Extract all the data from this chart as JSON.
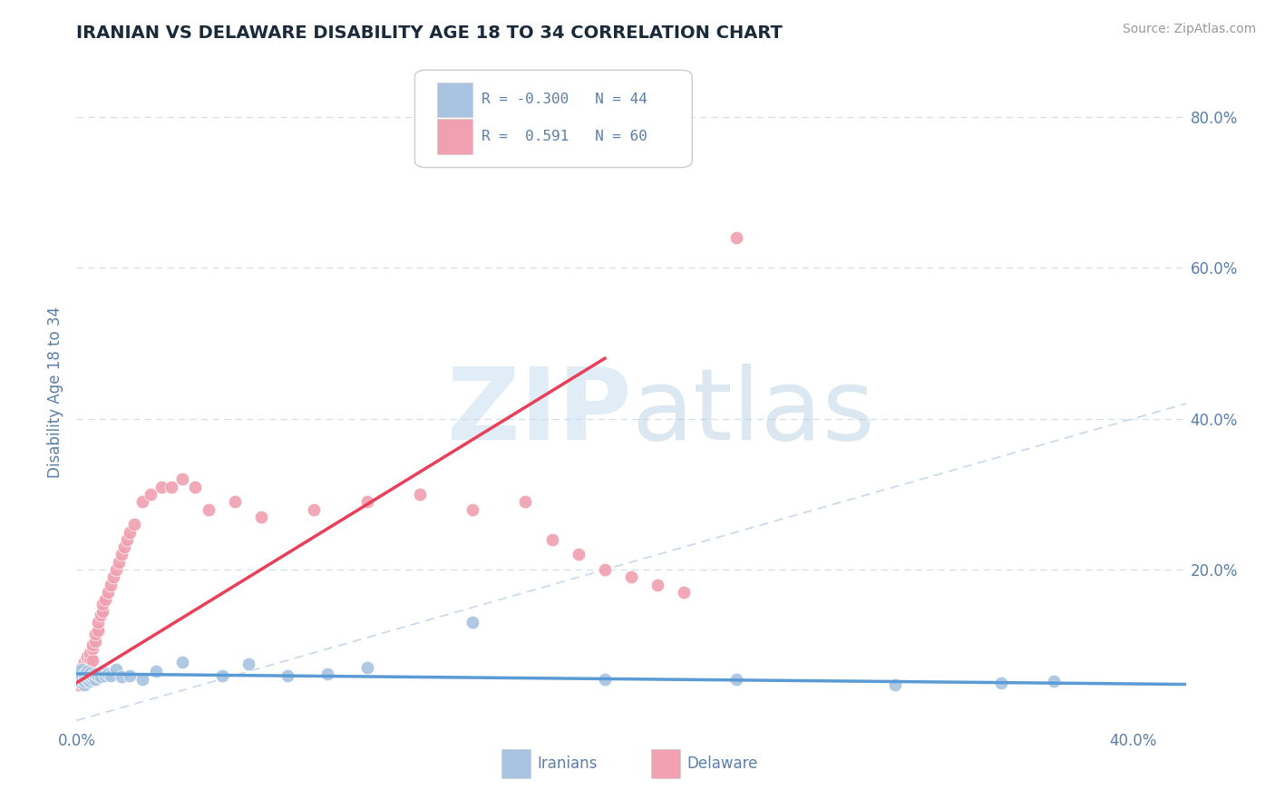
{
  "title": "IRANIAN VS DELAWARE DISABILITY AGE 18 TO 34 CORRELATION CHART",
  "source": "Source: ZipAtlas.com",
  "ylabel": "Disability Age 18 to 34",
  "xlim": [
    0.0,
    0.42
  ],
  "ylim": [
    -0.01,
    0.88
  ],
  "xticks": [
    0.0,
    0.1,
    0.2,
    0.3,
    0.4
  ],
  "yticks": [
    0.0,
    0.2,
    0.4,
    0.6,
    0.8
  ],
  "ytick_labels": [
    "",
    "20.0%",
    "40.0%",
    "60.0%",
    "80.0%"
  ],
  "xtick_labels": [
    "0.0%",
    "",
    "",
    "",
    "40.0%"
  ],
  "color_iranians": "#a8c4e0",
  "color_delaware": "#f0a0b0",
  "color_trendline_iranians": "#5b9bd5",
  "color_trendline_delaware": "#e8405a",
  "color_diagonal": "#c8d8e8",
  "background_color": "#ffffff",
  "grid_color": "#d4dfe8",
  "title_color": "#1a2a3a",
  "axis_label_color": "#5b7fa6",
  "tick_color": "#5b7fa6",
  "source_color": "#999999",
  "watermark_zip_color": "#c8dff0",
  "watermark_atlas_color": "#b0cce0",
  "iranians_x": [
    0.001,
    0.001,
    0.001,
    0.002,
    0.002,
    0.002,
    0.002,
    0.003,
    0.003,
    0.003,
    0.003,
    0.004,
    0.004,
    0.004,
    0.005,
    0.005,
    0.005,
    0.006,
    0.006,
    0.007,
    0.007,
    0.008,
    0.009,
    0.01,
    0.011,
    0.012,
    0.013,
    0.015,
    0.017,
    0.02,
    0.025,
    0.03,
    0.04,
    0.055,
    0.065,
    0.08,
    0.095,
    0.11,
    0.15,
    0.2,
    0.25,
    0.31,
    0.35,
    0.37
  ],
  "iranians_y": [
    0.055,
    0.06,
    0.065,
    0.05,
    0.055,
    0.06,
    0.068,
    0.048,
    0.052,
    0.058,
    0.062,
    0.055,
    0.06,
    0.065,
    0.052,
    0.058,
    0.063,
    0.055,
    0.06,
    0.055,
    0.062,
    0.06,
    0.058,
    0.065,
    0.06,
    0.062,
    0.06,
    0.068,
    0.058,
    0.06,
    0.055,
    0.065,
    0.078,
    0.06,
    0.075,
    0.06,
    0.062,
    0.07,
    0.13,
    0.055,
    0.055,
    0.048,
    0.05,
    0.052
  ],
  "delaware_x": [
    0.001,
    0.001,
    0.001,
    0.002,
    0.002,
    0.002,
    0.002,
    0.003,
    0.003,
    0.003,
    0.003,
    0.004,
    0.004,
    0.004,
    0.004,
    0.005,
    0.005,
    0.005,
    0.006,
    0.006,
    0.006,
    0.007,
    0.007,
    0.008,
    0.008,
    0.009,
    0.01,
    0.01,
    0.011,
    0.012,
    0.013,
    0.014,
    0.015,
    0.016,
    0.017,
    0.018,
    0.019,
    0.02,
    0.022,
    0.025,
    0.028,
    0.032,
    0.036,
    0.04,
    0.045,
    0.05,
    0.06,
    0.07,
    0.09,
    0.11,
    0.13,
    0.15,
    0.17,
    0.18,
    0.19,
    0.2,
    0.21,
    0.22,
    0.23,
    0.25
  ],
  "delaware_y": [
    0.048,
    0.055,
    0.06,
    0.05,
    0.058,
    0.062,
    0.07,
    0.055,
    0.065,
    0.072,
    0.078,
    0.06,
    0.068,
    0.08,
    0.085,
    0.07,
    0.082,
    0.09,
    0.08,
    0.095,
    0.1,
    0.105,
    0.115,
    0.12,
    0.13,
    0.14,
    0.145,
    0.155,
    0.16,
    0.17,
    0.18,
    0.19,
    0.2,
    0.21,
    0.22,
    0.23,
    0.24,
    0.25,
    0.26,
    0.29,
    0.3,
    0.31,
    0.31,
    0.32,
    0.31,
    0.28,
    0.29,
    0.27,
    0.28,
    0.29,
    0.3,
    0.28,
    0.29,
    0.24,
    0.22,
    0.2,
    0.19,
    0.18,
    0.17,
    0.64
  ]
}
